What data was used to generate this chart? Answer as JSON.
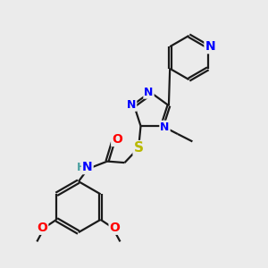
{
  "background_color": "#ebebeb",
  "bond_color": "#1a1a1a",
  "nitrogen_color": "#0000ff",
  "oxygen_color": "#ff0000",
  "sulfur_color": "#b8b800",
  "hydrogen_color": "#4aa0a0",
  "line_width": 1.6,
  "font_size": 10,
  "figsize": [
    3.0,
    3.0
  ],
  "dpi": 100,
  "xlim": [
    0,
    10
  ],
  "ylim": [
    0,
    10
  ]
}
